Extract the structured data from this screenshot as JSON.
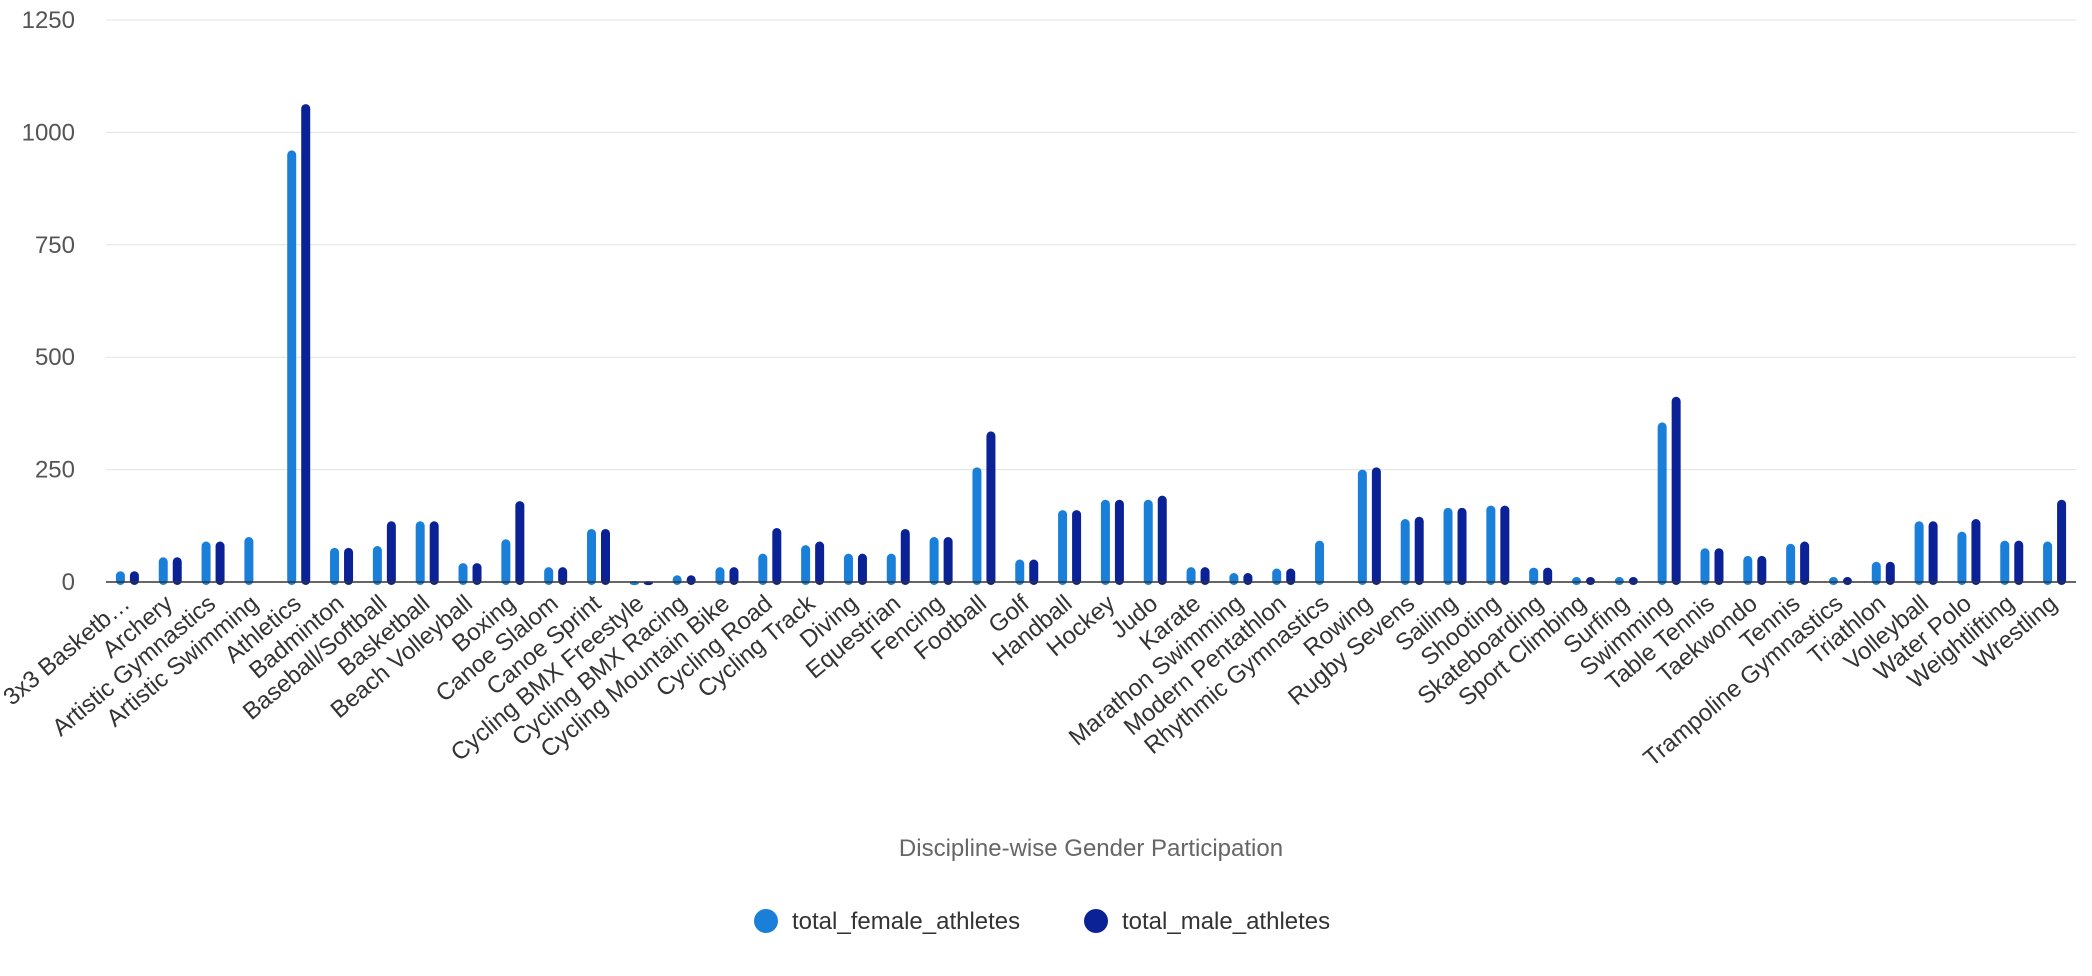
{
  "chart_data": {
    "type": "bar",
    "title": "",
    "xlabel": "Discipline-wise Gender Participation",
    "ylabel": "",
    "ylim": [
      0,
      1250
    ],
    "yticks": [
      0,
      250,
      500,
      750,
      1000,
      1250
    ],
    "grid": true,
    "legend_position": "bottom-center",
    "categories": [
      "3x3 Basketb…",
      "Archery",
      "Artistic Gymnastics",
      "Artistic Swimming",
      "Athletics",
      "Badminton",
      "Baseball/Softball",
      "Basketball",
      "Beach Volleyball",
      "Boxing",
      "Canoe Slalom",
      "Canoe Sprint",
      "Cycling BMX Freestyle",
      "Cycling BMX Racing",
      "Cycling Mountain Bike",
      "Cycling Road",
      "Cycling Track",
      "Diving",
      "Equestrian",
      "Fencing",
      "Football",
      "Golf",
      "Handball",
      "Hockey",
      "Judo",
      "Karate",
      "Marathon Swimming",
      "Modern Pentathlon",
      "Rhythmic Gymnastics",
      "Rowing",
      "Rugby Sevens",
      "Sailing",
      "Shooting",
      "Skateboarding",
      "Sport Climbing",
      "Surfing",
      "Swimming",
      "Table Tennis",
      "Taekwondo",
      "Tennis",
      "Trampoline Gymnastics",
      "Triathlon",
      "Volleyball",
      "Water Polo",
      "Weightlifting",
      "Wrestling"
    ],
    "series": [
      {
        "name": "total_female_athletes",
        "color": "#1a7fd9",
        "values": [
          24,
          55,
          90,
          100,
          960,
          76,
          80,
          135,
          42,
          95,
          33,
          118,
          2,
          15,
          33,
          63,
          82,
          63,
          63,
          100,
          255,
          50,
          160,
          183,
          183,
          33,
          20,
          30,
          92,
          250,
          140,
          165,
          170,
          32,
          11,
          11,
          355,
          75,
          58,
          85,
          11,
          45,
          135,
          112,
          92,
          90
        ]
      },
      {
        "name": "total_male_athletes",
        "color": "#0a2296",
        "values": [
          24,
          55,
          90,
          0,
          1063,
          76,
          135,
          135,
          42,
          180,
          33,
          118,
          2,
          15,
          33,
          120,
          90,
          63,
          118,
          100,
          335,
          50,
          160,
          183,
          192,
          33,
          20,
          30,
          0,
          255,
          145,
          165,
          170,
          32,
          11,
          11,
          412,
          75,
          58,
          90,
          11,
          45,
          135,
          140,
          92,
          183
        ]
      }
    ]
  }
}
